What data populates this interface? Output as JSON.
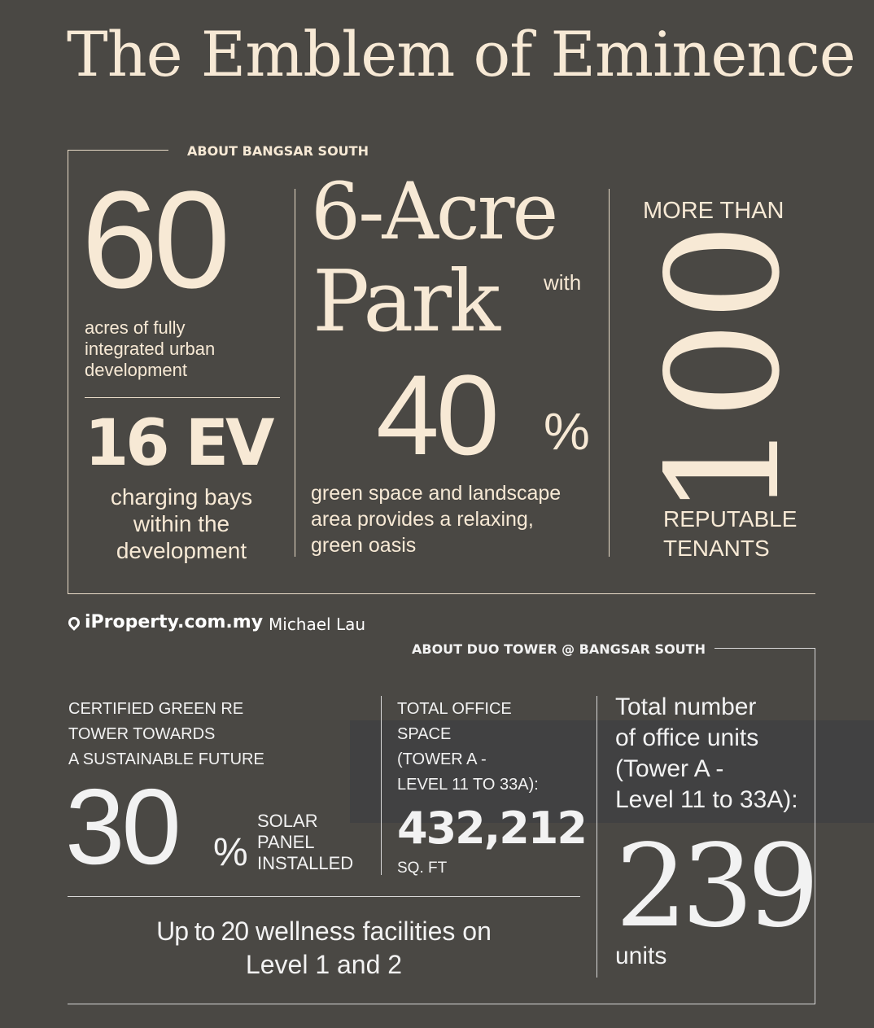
{
  "title": "The Emblem of Eminence",
  "section1": {
    "heading": "ABOUT BANGSAR SOUTH",
    "acres_value": "60",
    "acres_text": [
      "acres of fully",
      "integrated urban",
      "development"
    ],
    "ev_value": "16 EV",
    "ev_text": [
      "charging bays",
      "within the",
      "development"
    ],
    "park_line1": "6-Acre",
    "park_line2": "Park",
    "park_with": "with",
    "green_value": "40",
    "green_unit": "%",
    "green_text": [
      "green space and landscape",
      "area provides a relaxing,",
      "green oasis"
    ],
    "tenants_prefix": "MORE THAN",
    "tenants_value": "100",
    "tenants_text": [
      "REPUTABLE",
      "TENANTS"
    ]
  },
  "section2": {
    "heading": "ABOUT DUO TOWER @ BANGSAR SOUTH",
    "green_cert": [
      "CERTIFIED GREEN RE",
      "TOWER TOWARDS",
      "A SUSTAINABLE FUTURE"
    ],
    "solar_value": "30",
    "solar_unit": "%",
    "solar_text": [
      "SOLAR",
      "PANEL",
      "INSTALLED"
    ],
    "office_space_label": [
      "TOTAL OFFICE",
      "SPACE",
      "(TOWER A -",
      "LEVEL 11 TO 33A):"
    ],
    "office_space_value": "432,212",
    "office_space_unit": "SQ. FT",
    "wellness_bold": "Up to 20",
    "wellness_text": " wellness facilities on",
    "wellness_line2": "Level 1 and 2",
    "units_label": [
      "Total number",
      "of office units",
      "(Tower A -",
      "Level 11 to 33A):"
    ],
    "units_value": "239",
    "units_unit": "units"
  },
  "watermark": {
    "brand": "iProperty.com.my",
    "agent": "Michael Lau",
    "icon": "location-pin-icon"
  },
  "colors": {
    "background": "#4a4844",
    "accent": "#f7e9d5"
  }
}
